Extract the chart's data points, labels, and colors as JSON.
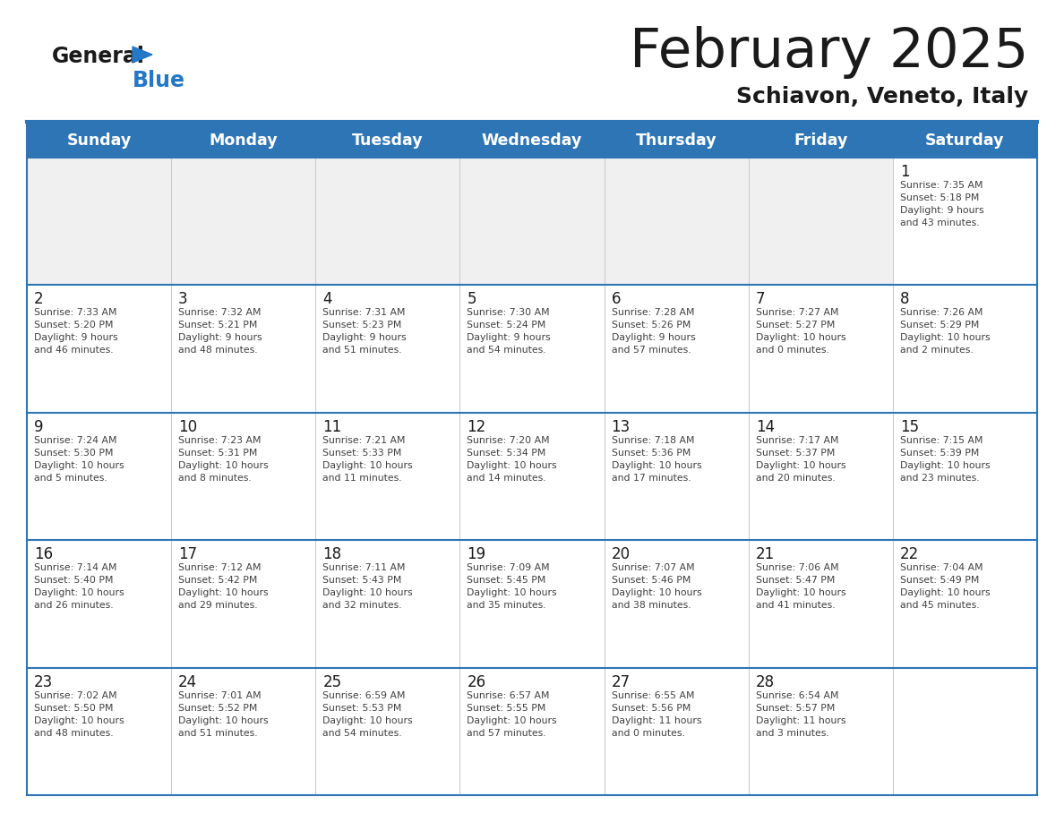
{
  "title": "February 2025",
  "subtitle": "Schiavon, Veneto, Italy",
  "days_of_week": [
    "Sunday",
    "Monday",
    "Tuesday",
    "Wednesday",
    "Thursday",
    "Friday",
    "Saturday"
  ],
  "header_bg": "#2e75b6",
  "header_text": "#ffffff",
  "cell_bg_light": "#f0f0f0",
  "cell_bg_white": "#ffffff",
  "text_color": "#404040",
  "date_color": "#1a1a1a",
  "line_color": "#2e75b6",
  "title_color": "#1a1a1a",
  "subtitle_color": "#1a1a1a",
  "logo_general_color": "#1a1a1a",
  "logo_blue_color": "#2478c5",
  "border_color": "#2e75b6",
  "weeks": [
    [
      {
        "day": null,
        "info": null
      },
      {
        "day": null,
        "info": null
      },
      {
        "day": null,
        "info": null
      },
      {
        "day": null,
        "info": null
      },
      {
        "day": null,
        "info": null
      },
      {
        "day": null,
        "info": null
      },
      {
        "day": 1,
        "info": "Sunrise: 7:35 AM\nSunset: 5:18 PM\nDaylight: 9 hours\nand 43 minutes."
      }
    ],
    [
      {
        "day": 2,
        "info": "Sunrise: 7:33 AM\nSunset: 5:20 PM\nDaylight: 9 hours\nand 46 minutes."
      },
      {
        "day": 3,
        "info": "Sunrise: 7:32 AM\nSunset: 5:21 PM\nDaylight: 9 hours\nand 48 minutes."
      },
      {
        "day": 4,
        "info": "Sunrise: 7:31 AM\nSunset: 5:23 PM\nDaylight: 9 hours\nand 51 minutes."
      },
      {
        "day": 5,
        "info": "Sunrise: 7:30 AM\nSunset: 5:24 PM\nDaylight: 9 hours\nand 54 minutes."
      },
      {
        "day": 6,
        "info": "Sunrise: 7:28 AM\nSunset: 5:26 PM\nDaylight: 9 hours\nand 57 minutes."
      },
      {
        "day": 7,
        "info": "Sunrise: 7:27 AM\nSunset: 5:27 PM\nDaylight: 10 hours\nand 0 minutes."
      },
      {
        "day": 8,
        "info": "Sunrise: 7:26 AM\nSunset: 5:29 PM\nDaylight: 10 hours\nand 2 minutes."
      }
    ],
    [
      {
        "day": 9,
        "info": "Sunrise: 7:24 AM\nSunset: 5:30 PM\nDaylight: 10 hours\nand 5 minutes."
      },
      {
        "day": 10,
        "info": "Sunrise: 7:23 AM\nSunset: 5:31 PM\nDaylight: 10 hours\nand 8 minutes."
      },
      {
        "day": 11,
        "info": "Sunrise: 7:21 AM\nSunset: 5:33 PM\nDaylight: 10 hours\nand 11 minutes."
      },
      {
        "day": 12,
        "info": "Sunrise: 7:20 AM\nSunset: 5:34 PM\nDaylight: 10 hours\nand 14 minutes."
      },
      {
        "day": 13,
        "info": "Sunrise: 7:18 AM\nSunset: 5:36 PM\nDaylight: 10 hours\nand 17 minutes."
      },
      {
        "day": 14,
        "info": "Sunrise: 7:17 AM\nSunset: 5:37 PM\nDaylight: 10 hours\nand 20 minutes."
      },
      {
        "day": 15,
        "info": "Sunrise: 7:15 AM\nSunset: 5:39 PM\nDaylight: 10 hours\nand 23 minutes."
      }
    ],
    [
      {
        "day": 16,
        "info": "Sunrise: 7:14 AM\nSunset: 5:40 PM\nDaylight: 10 hours\nand 26 minutes."
      },
      {
        "day": 17,
        "info": "Sunrise: 7:12 AM\nSunset: 5:42 PM\nDaylight: 10 hours\nand 29 minutes."
      },
      {
        "day": 18,
        "info": "Sunrise: 7:11 AM\nSunset: 5:43 PM\nDaylight: 10 hours\nand 32 minutes."
      },
      {
        "day": 19,
        "info": "Sunrise: 7:09 AM\nSunset: 5:45 PM\nDaylight: 10 hours\nand 35 minutes."
      },
      {
        "day": 20,
        "info": "Sunrise: 7:07 AM\nSunset: 5:46 PM\nDaylight: 10 hours\nand 38 minutes."
      },
      {
        "day": 21,
        "info": "Sunrise: 7:06 AM\nSunset: 5:47 PM\nDaylight: 10 hours\nand 41 minutes."
      },
      {
        "day": 22,
        "info": "Sunrise: 7:04 AM\nSunset: 5:49 PM\nDaylight: 10 hours\nand 45 minutes."
      }
    ],
    [
      {
        "day": 23,
        "info": "Sunrise: 7:02 AM\nSunset: 5:50 PM\nDaylight: 10 hours\nand 48 minutes."
      },
      {
        "day": 24,
        "info": "Sunrise: 7:01 AM\nSunset: 5:52 PM\nDaylight: 10 hours\nand 51 minutes."
      },
      {
        "day": 25,
        "info": "Sunrise: 6:59 AM\nSunset: 5:53 PM\nDaylight: 10 hours\nand 54 minutes."
      },
      {
        "day": 26,
        "info": "Sunrise: 6:57 AM\nSunset: 5:55 PM\nDaylight: 10 hours\nand 57 minutes."
      },
      {
        "day": 27,
        "info": "Sunrise: 6:55 AM\nSunset: 5:56 PM\nDaylight: 11 hours\nand 0 minutes."
      },
      {
        "day": 28,
        "info": "Sunrise: 6:54 AM\nSunset: 5:57 PM\nDaylight: 11 hours\nand 3 minutes."
      },
      {
        "day": null,
        "info": null
      }
    ]
  ]
}
